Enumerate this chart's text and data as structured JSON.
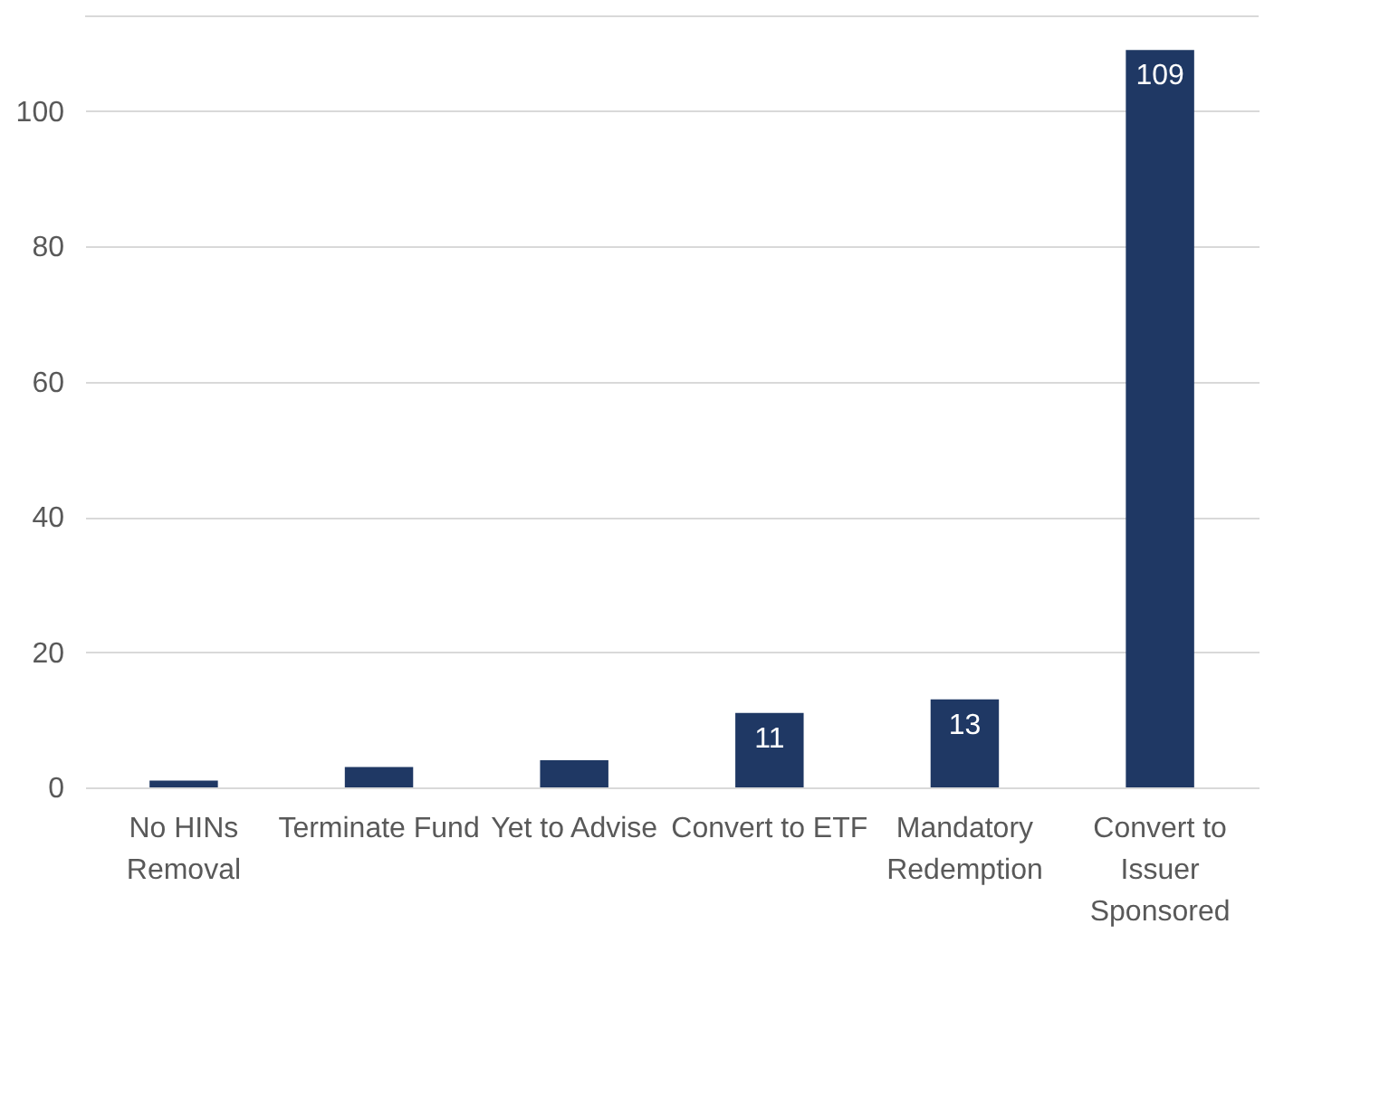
{
  "chart_data": {
    "type": "bar",
    "categories": [
      "No HINs Removal",
      "Terminate Fund",
      "Yet to Advise",
      "Convert to ETF",
      "Mandatory Redemption",
      "Convert to Issuer Sponsored"
    ],
    "values": [
      1,
      3,
      4,
      11,
      13,
      109
    ],
    "value_labels": [
      null,
      null,
      null,
      "11",
      "13",
      "109"
    ],
    "color": "#1f3864",
    "ylim": [
      0,
      114
    ],
    "yticks": [
      0,
      20,
      40,
      60,
      80,
      100
    ],
    "grid": "y"
  }
}
